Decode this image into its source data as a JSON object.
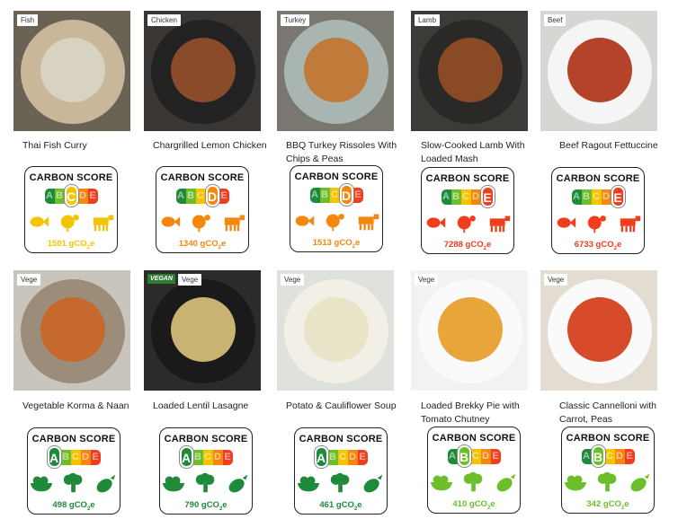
{
  "common": {
    "card_title": "CARBON SCORE",
    "unit": "gCO",
    "unit_sub": "2",
    "unit_suffix": "e",
    "grades": [
      "A",
      "B",
      "C",
      "D",
      "E"
    ]
  },
  "colors": {
    "A": "#1e8a3a",
    "B": "#6cbf2a",
    "C": "#f5c400",
    "D": "#f5870f",
    "E": "#ef3d1d"
  },
  "meals": [
    {
      "tag": "Fish",
      "name": "Thai Fish Curry",
      "grade": "C",
      "score": "1501",
      "icons": [
        "fish-icon",
        "turkey-icon",
        "cow-icon"
      ]
    },
    {
      "tag": "Chicken",
      "name": "Chargrilled Lemon Chicken",
      "grade": "D",
      "score": "1340",
      "icons": [
        "fish-icon",
        "turkey-icon",
        "cow-icon"
      ]
    },
    {
      "tag": "Turkey",
      "name": "BBQ Turkey Rissoles With Chips & Peas",
      "grade": "D",
      "score": "1513",
      "icons": [
        "fish-icon",
        "turkey-icon",
        "cow-icon"
      ]
    },
    {
      "tag": "Lamb",
      "name": "Slow-Cooked Lamb With Loaded Mash",
      "grade": "E",
      "score": "7288",
      "icons": [
        "fish-icon",
        "turkey-icon",
        "cow-icon"
      ]
    },
    {
      "tag": "Beef",
      "name": "Beef Ragout Fettuccine",
      "grade": "E",
      "score": "6733",
      "icons": [
        "fish-icon",
        "turkey-icon",
        "cow-icon"
      ]
    },
    {
      "tag": "Vege",
      "name": "Vegetable Korma & Naan",
      "grade": "A",
      "score": "498",
      "icons": [
        "fruit-bowl-icon",
        "broccoli-icon",
        "eggplant-icon"
      ]
    },
    {
      "tag": "Vege",
      "badge": "VEGAN",
      "name": "Loaded Lentil Lasagne",
      "grade": "A",
      "score": "790",
      "icons": [
        "fruit-bowl-icon",
        "broccoli-icon",
        "eggplant-icon"
      ]
    },
    {
      "tag": "Vege",
      "name": "Potato & Cauliflower Soup",
      "grade": "A",
      "score": "461",
      "icons": [
        "fruit-bowl-icon",
        "broccoli-icon",
        "eggplant-icon"
      ]
    },
    {
      "tag": "Vege",
      "name": "Loaded Brekky Pie with Tomato Chutney",
      "grade": "B",
      "score": "410",
      "icons": [
        "fruit-bowl-icon",
        "broccoli-icon",
        "eggplant-icon"
      ]
    },
    {
      "tag": "Vege",
      "name": "Classic Cannelloni with Carrot, Peas",
      "grade": "B",
      "score": "342",
      "icons": [
        "fruit-bowl-icon",
        "broccoli-icon",
        "eggplant-icon"
      ]
    }
  ]
}
